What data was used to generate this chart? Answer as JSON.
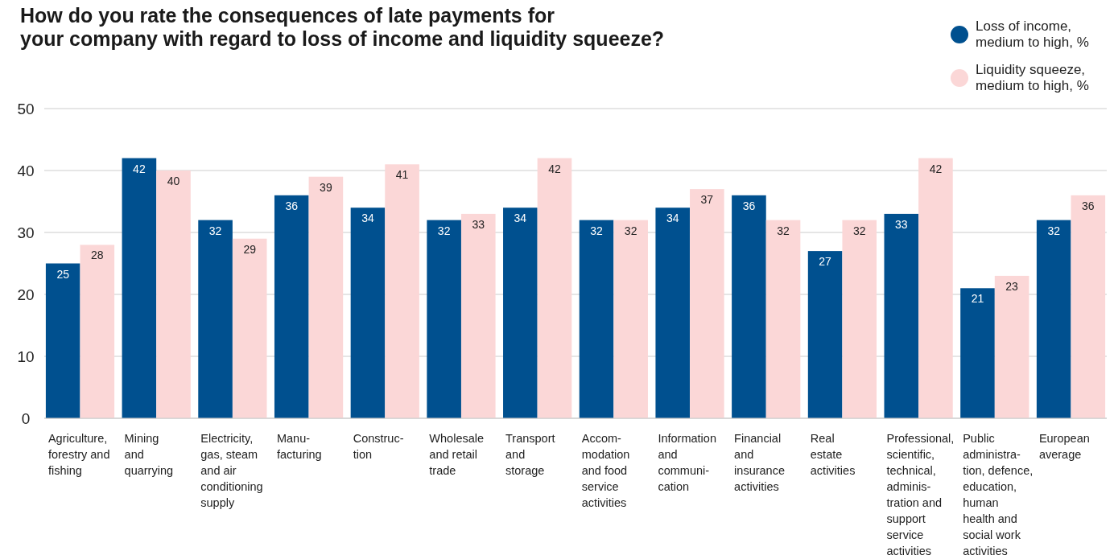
{
  "chart_data": {
    "type": "bar",
    "title": "How do you rate the consequences of late payments for\nyour company with regard to loss of income and liquidity squeeze?",
    "categories": [
      "Agriculture,\nforestry and\nfishing",
      "Mining\nand\nquarrying",
      "Electricity,\ngas, steam\nand air\nconditioning\nsupply",
      "Manu-\nfacturing",
      "Construc-\ntion",
      "Wholesale\nand retail\ntrade",
      "Transport\nand\nstorage",
      "Accom-\nmodation\nand food\nservice\nactivities",
      "Information\nand\ncommuni-\ncation",
      "Financial\nand\ninsurance\nactivities",
      "Real\nestate\nactivities",
      "Professional,\nscientific,\ntechnical,\nadminis-\ntration and\nsupport\nservice\nactivities",
      "Public\nadministra-\ntion, defence,\neducation,\nhuman\nhealth and\nsocial work\nactivities",
      "European\naverage"
    ],
    "series": [
      {
        "name": "Loss of income,\nmedium to high, %",
        "color": "#00508f",
        "values": [
          25,
          42,
          32,
          36,
          34,
          32,
          34,
          32,
          34,
          36,
          27,
          33,
          21,
          32
        ]
      },
      {
        "name": "Liquidity squeeze,\nmedium to high, %",
        "color": "#fbd7d7",
        "values": [
          28,
          40,
          29,
          39,
          41,
          33,
          42,
          32,
          37,
          32,
          32,
          42,
          23,
          36
        ]
      }
    ],
    "ylim": [
      0,
      50
    ],
    "yticks": [
      0,
      10,
      20,
      30,
      40,
      50
    ],
    "grid": "y",
    "legend": "top right",
    "data_labels": true
  }
}
